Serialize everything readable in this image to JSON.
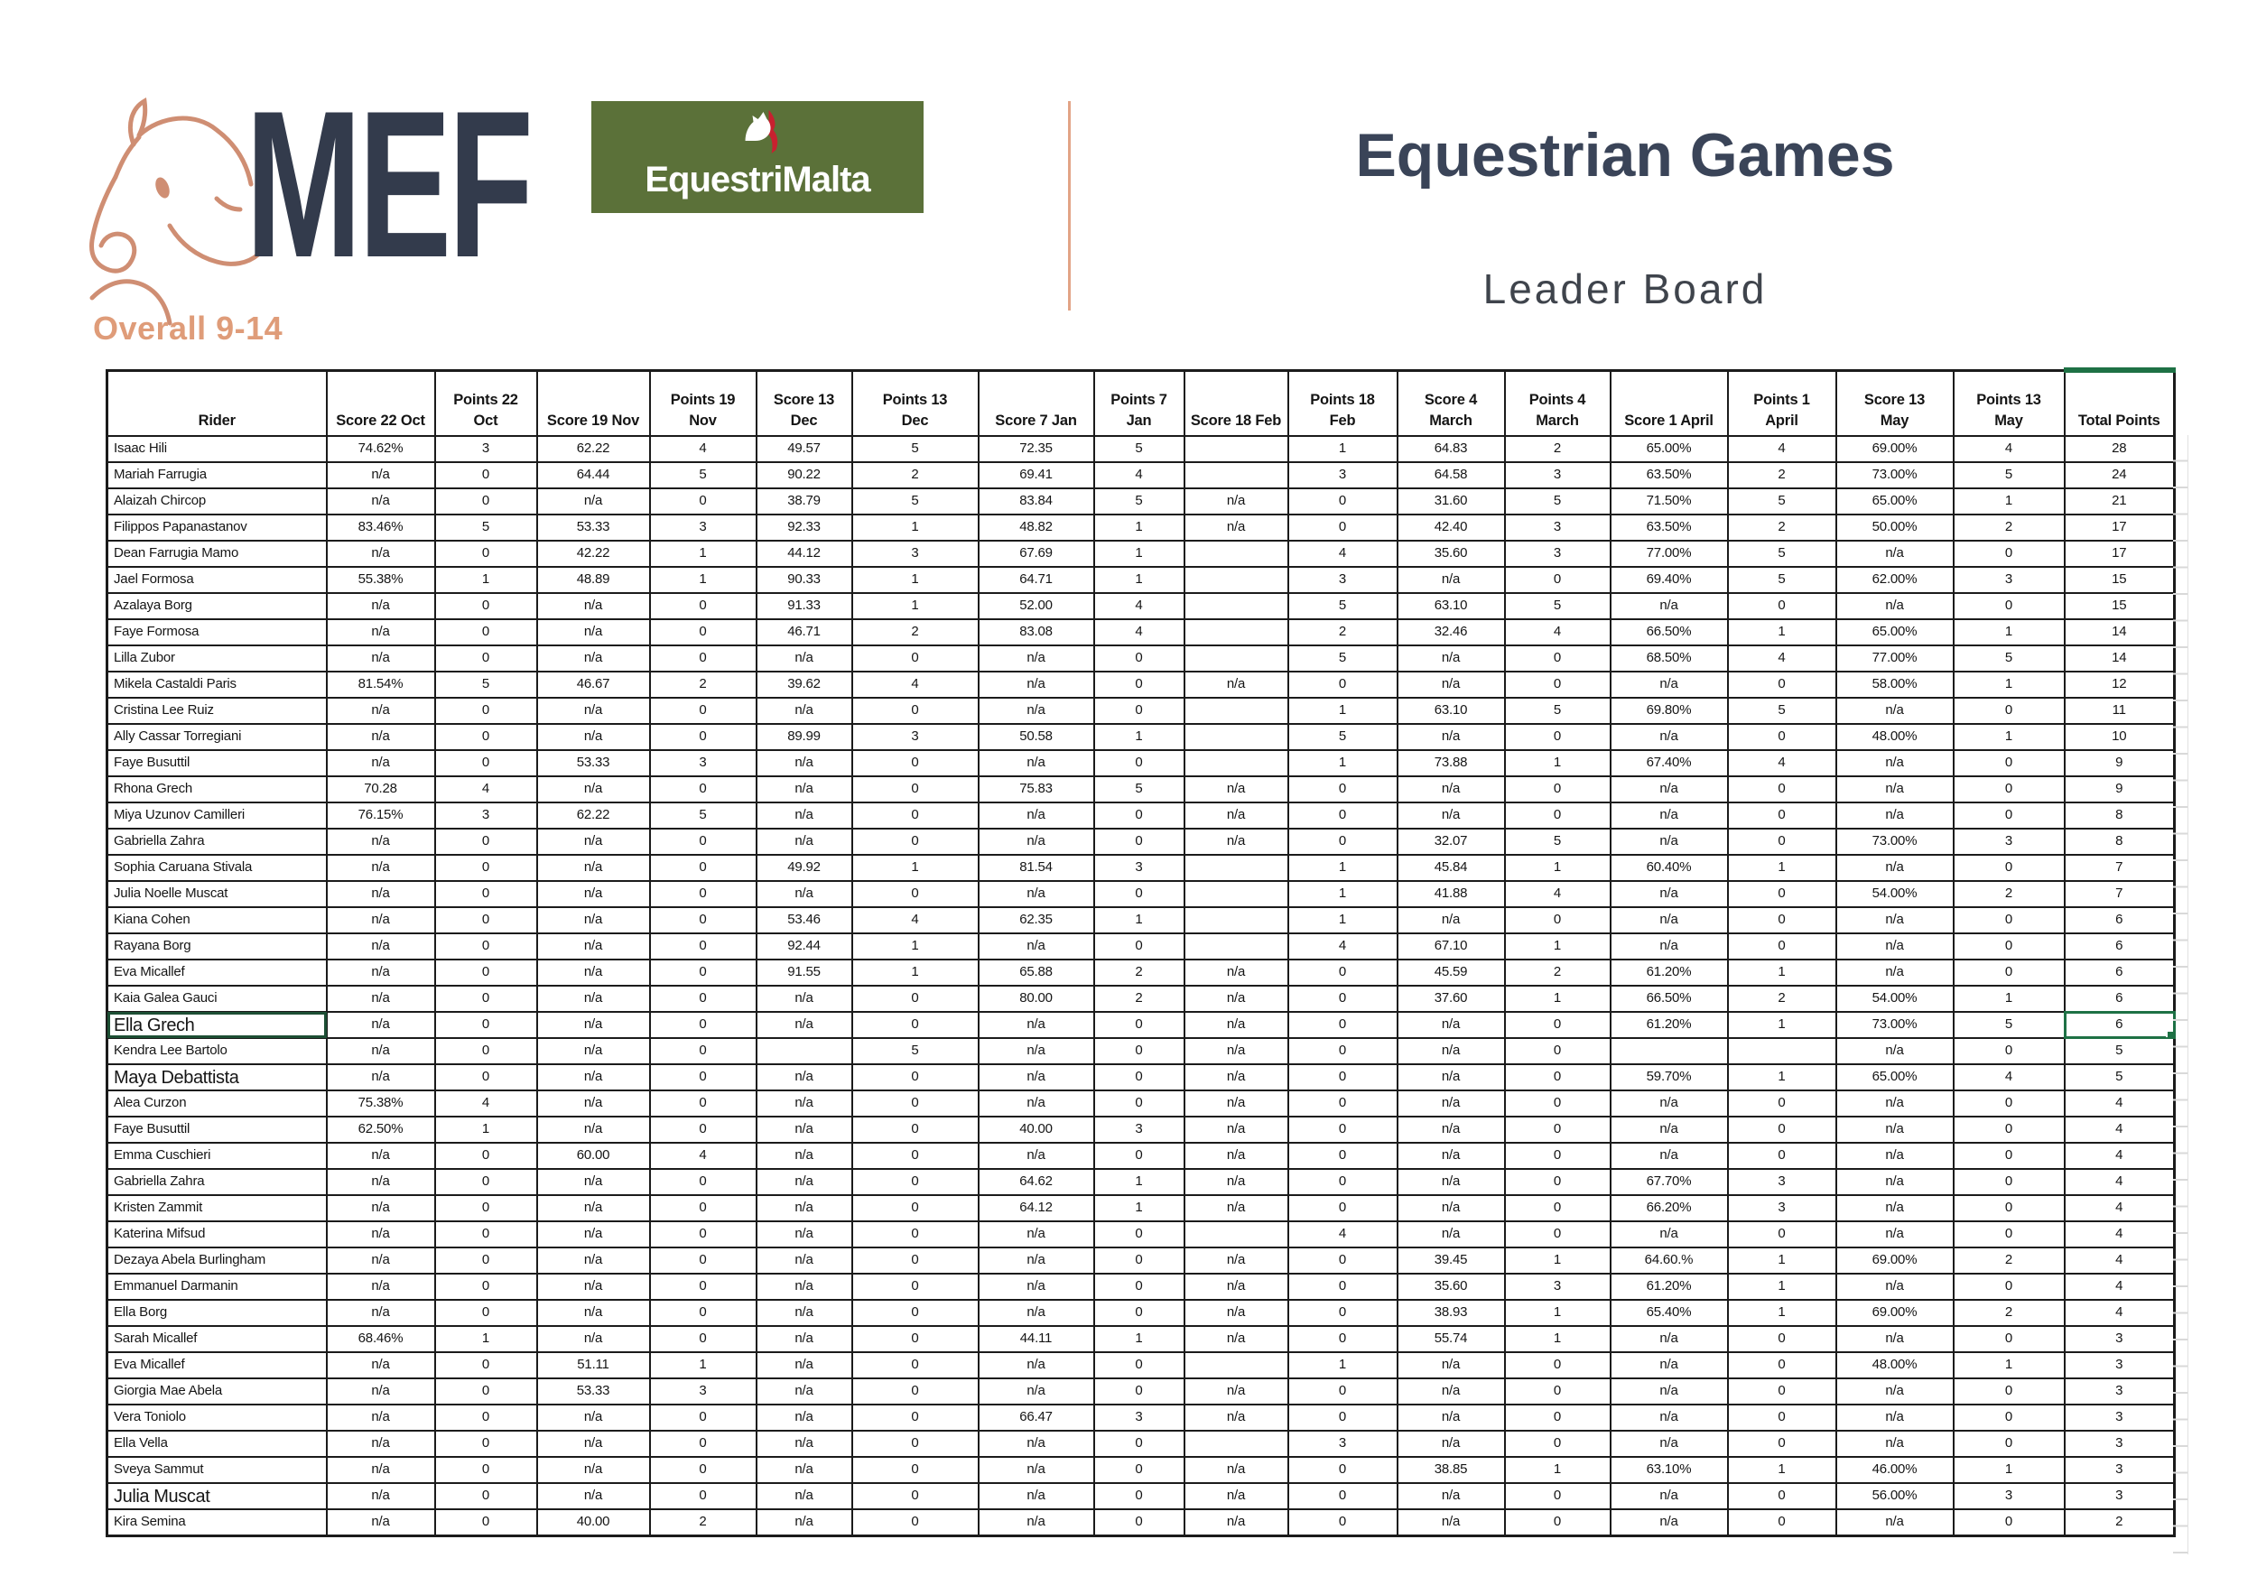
{
  "branding": {
    "mef_text": "MEF",
    "equestrimalta_label": "EquestriMalta",
    "overall_label": "Overall 9-14",
    "colors": {
      "accent_salmon": "#df9c79",
      "logo_green": "#5b7139",
      "navy": "#333b4c",
      "excel_green": "#1e7145"
    }
  },
  "header": {
    "title": "Equestrian Games",
    "subtitle": "Leader Board"
  },
  "table": {
    "columns": [
      "Rider",
      "Score 22 Oct",
      "Points 22\nOct",
      "Score 19 Nov",
      "Points 19\nNov",
      "Score 13 Dec",
      "Points 13\nDec",
      "Score 7 Jan",
      "Points 7 Jan",
      "Score 18 Feb",
      "Points 18\nFeb",
      "Score 4\nMarch",
      "Points 4\nMarch",
      "Score 1 April",
      "Points 1\nApril",
      "Score 13\nMay",
      "Points 13\nMay",
      "Total Points"
    ],
    "rows": [
      {
        "name": "Isaac Hili",
        "values": [
          "74.62%",
          "3",
          "62.22",
          "4",
          "49.57",
          "5",
          "72.35",
          "5",
          "",
          "1",
          "64.83",
          "2",
          "65.00%",
          "4",
          "69.00%",
          "4",
          "28"
        ]
      },
      {
        "name": "Mariah Farrugia",
        "values": [
          "n/a",
          "0",
          "64.44",
          "5",
          "90.22",
          "2",
          "69.41",
          "4",
          "",
          "3",
          "64.58",
          "3",
          "63.50%",
          "2",
          "73.00%",
          "5",
          "24"
        ]
      },
      {
        "name": "Alaizah Chircop",
        "values": [
          "n/a",
          "0",
          "n/a",
          "0",
          "38.79",
          "5",
          "83.84",
          "5",
          "n/a",
          "0",
          "31.60",
          "5",
          "71.50%",
          "5",
          "65.00%",
          "1",
          "21"
        ]
      },
      {
        "name": "Filippos Papanastanov",
        "values": [
          "83.46%",
          "5",
          "53.33",
          "3",
          "92.33",
          "1",
          "48.82",
          "1",
          "n/a",
          "0",
          "42.40",
          "3",
          "63.50%",
          "2",
          "50.00%",
          "2",
          "17"
        ]
      },
      {
        "name": "Dean Farrugia Mamo",
        "values": [
          "n/a",
          "0",
          "42.22",
          "1",
          "44.12",
          "3",
          "67.69",
          "1",
          "",
          "4",
          "35.60",
          "3",
          "77.00%",
          "5",
          "n/a",
          "0",
          "17"
        ]
      },
      {
        "name": "Jael Formosa",
        "values": [
          "55.38%",
          "1",
          "48.89",
          "1",
          "90.33",
          "1",
          "64.71",
          "1",
          "",
          "3",
          "n/a",
          "0",
          "69.40%",
          "5",
          "62.00%",
          "3",
          "15"
        ]
      },
      {
        "name": "Azalaya Borg",
        "values": [
          "n/a",
          "0",
          "n/a",
          "0",
          "91.33",
          "1",
          "52.00",
          "4",
          "",
          "5",
          "63.10",
          "5",
          "n/a",
          "0",
          "n/a",
          "0",
          "15"
        ]
      },
      {
        "name": "Faye Formosa",
        "values": [
          "n/a",
          "0",
          "n/a",
          "0",
          "46.71",
          "2",
          "83.08",
          "4",
          "",
          "2",
          "32.46",
          "4",
          "66.50%",
          "1",
          "65.00%",
          "1",
          "14"
        ]
      },
      {
        "name": "Lilla Zubor",
        "values": [
          "n/a",
          "0",
          "n/a",
          "0",
          "n/a",
          "0",
          "n/a",
          "0",
          "",
          "5",
          "n/a",
          "0",
          "68.50%",
          "4",
          "77.00%",
          "5",
          "14"
        ]
      },
      {
        "name": "Mikela Castaldi Paris",
        "values": [
          "81.54%",
          "5",
          "46.67",
          "2",
          "39.62",
          "4",
          "n/a",
          "0",
          "n/a",
          "0",
          "n/a",
          "0",
          "n/a",
          "0",
          "58.00%",
          "1",
          "12"
        ]
      },
      {
        "name": "Cristina Lee Ruiz",
        "values": [
          "n/a",
          "0",
          "n/a",
          "0",
          "n/a",
          "0",
          "n/a",
          "0",
          "",
          "1",
          "63.10",
          "5",
          "69.80%",
          "5",
          "n/a",
          "0",
          "11"
        ]
      },
      {
        "name": "Ally Cassar Torregiani",
        "values": [
          "n/a",
          "0",
          "n/a",
          "0",
          "89.99",
          "3",
          "50.58",
          "1",
          "",
          "5",
          "n/a",
          "0",
          "n/a",
          "0",
          "48.00%",
          "1",
          "10"
        ]
      },
      {
        "name": "Faye Busuttil",
        "values": [
          "n/a",
          "0",
          "53.33",
          "3",
          "n/a",
          "0",
          "n/a",
          "0",
          "",
          "1",
          "73.88",
          "1",
          "67.40%",
          "4",
          "n/a",
          "0",
          "9"
        ]
      },
      {
        "name": "Rhona Grech",
        "values": [
          "70.28",
          "4",
          "n/a",
          "0",
          "n/a",
          "0",
          "75.83",
          "5",
          "n/a",
          "0",
          "n/a",
          "0",
          "n/a",
          "0",
          "n/a",
          "0",
          "9"
        ]
      },
      {
        "name": "Miya Uzunov Camilleri",
        "values": [
          "76.15%",
          "3",
          "62.22",
          "5",
          "n/a",
          "0",
          "n/a",
          "0",
          "n/a",
          "0",
          "n/a",
          "0",
          "n/a",
          "0",
          "n/a",
          "0",
          "8"
        ]
      },
      {
        "name": "Gabriella Zahra",
        "values": [
          "n/a",
          "0",
          "n/a",
          "0",
          "n/a",
          "0",
          "n/a",
          "0",
          "n/a",
          "0",
          "32.07",
          "5",
          "n/a",
          "0",
          "73.00%",
          "3",
          "8"
        ]
      },
      {
        "name": "Sophia Caruana Stivala",
        "values": [
          "n/a",
          "0",
          "n/a",
          "0",
          "49.92",
          "1",
          "81.54",
          "3",
          "",
          "1",
          "45.84",
          "1",
          "60.40%",
          "1",
          "n/a",
          "0",
          "7"
        ]
      },
      {
        "name": "Julia Noelle Muscat",
        "values": [
          "n/a",
          "0",
          "n/a",
          "0",
          "n/a",
          "0",
          "n/a",
          "0",
          "",
          "1",
          "41.88",
          "4",
          "n/a",
          "0",
          "54.00%",
          "2",
          "7"
        ]
      },
      {
        "name": "Kiana Cohen",
        "values": [
          "n/a",
          "0",
          "n/a",
          "0",
          "53.46",
          "4",
          "62.35",
          "1",
          "",
          "1",
          "n/a",
          "0",
          "n/a",
          "0",
          "n/a",
          "0",
          "6"
        ]
      },
      {
        "name": "Rayana Borg",
        "values": [
          "n/a",
          "0",
          "n/a",
          "0",
          "92.44",
          "1",
          "n/a",
          "0",
          "",
          "4",
          "67.10",
          "1",
          "n/a",
          "0",
          "n/a",
          "0",
          "6"
        ]
      },
      {
        "name": "Eva Micallef",
        "values": [
          "n/a",
          "0",
          "n/a",
          "0",
          "91.55",
          "1",
          "65.88",
          "2",
          "n/a",
          "0",
          "45.59",
          "2",
          "61.20%",
          "1",
          "n/a",
          "0",
          "6"
        ]
      },
      {
        "name": "Kaia Galea Gauci",
        "values": [
          "n/a",
          "0",
          "n/a",
          "0",
          "n/a",
          "0",
          "80.00",
          "2",
          "n/a",
          "0",
          "37.60",
          "1",
          "66.50%",
          "2",
          "54.00%",
          "1",
          "6"
        ]
      },
      {
        "name": "Ella Grech",
        "big": true,
        "selected": true,
        "values": [
          "n/a",
          "0",
          "n/a",
          "0",
          "n/a",
          "0",
          "n/a",
          "0",
          "n/a",
          "0",
          "n/a",
          "0",
          "61.20%",
          "1",
          "73.00%",
          "5",
          "6"
        ]
      },
      {
        "name": "Kendra Lee Bartolo",
        "values": [
          "n/a",
          "0",
          "n/a",
          "0",
          "",
          "5",
          "n/a",
          "0",
          "n/a",
          "0",
          "n/a",
          "0",
          "",
          "",
          "n/a",
          "0",
          "5"
        ]
      },
      {
        "name": "Maya Debattista",
        "big": true,
        "values": [
          "n/a",
          "0",
          "n/a",
          "0",
          "n/a",
          "0",
          "n/a",
          "0",
          "n/a",
          "0",
          "n/a",
          "0",
          "59.70%",
          "1",
          "65.00%",
          "4",
          "5"
        ]
      },
      {
        "name": "Alea Curzon",
        "values": [
          "75.38%",
          "4",
          "n/a",
          "0",
          "n/a",
          "0",
          "n/a",
          "0",
          "n/a",
          "0",
          "n/a",
          "0",
          "n/a",
          "0",
          "n/a",
          "0",
          "4"
        ]
      },
      {
        "name": "Faye Busuttil",
        "values": [
          "62.50%",
          "1",
          "n/a",
          "0",
          "n/a",
          "0",
          "40.00",
          "3",
          "n/a",
          "0",
          "n/a",
          "0",
          "n/a",
          "0",
          "n/a",
          "0",
          "4"
        ]
      },
      {
        "name": "Emma Cuschieri",
        "values": [
          "n/a",
          "0",
          "60.00",
          "4",
          "n/a",
          "0",
          "n/a",
          "0",
          "n/a",
          "0",
          "n/a",
          "0",
          "n/a",
          "0",
          "n/a",
          "0",
          "4"
        ]
      },
      {
        "name": "Gabriella Zahra",
        "values": [
          "n/a",
          "0",
          "n/a",
          "0",
          "n/a",
          "0",
          "64.62",
          "1",
          "n/a",
          "0",
          "n/a",
          "0",
          "67.70%",
          "3",
          "n/a",
          "0",
          "4"
        ]
      },
      {
        "name": "Kristen Zammit",
        "values": [
          "n/a",
          "0",
          "n/a",
          "0",
          "n/a",
          "0",
          "64.12",
          "1",
          "n/a",
          "0",
          "n/a",
          "0",
          "66.20%",
          "3",
          "n/a",
          "0",
          "4"
        ]
      },
      {
        "name": "Katerina Mifsud",
        "values": [
          "n/a",
          "0",
          "n/a",
          "0",
          "n/a",
          "0",
          "n/a",
          "0",
          "",
          "4",
          "n/a",
          "0",
          "n/a",
          "0",
          "n/a",
          "0",
          "4"
        ]
      },
      {
        "name": "Dezaya Abela Burlingham",
        "values": [
          "n/a",
          "0",
          "n/a",
          "0",
          "n/a",
          "0",
          "n/a",
          "0",
          "n/a",
          "0",
          "39.45",
          "1",
          "64.60.%",
          "1",
          "69.00%",
          "2",
          "4"
        ]
      },
      {
        "name": "Emmanuel Darmanin",
        "values": [
          "n/a",
          "0",
          "n/a",
          "0",
          "n/a",
          "0",
          "n/a",
          "0",
          "n/a",
          "0",
          "35.60",
          "3",
          "61.20%",
          "1",
          "n/a",
          "0",
          "4"
        ]
      },
      {
        "name": "Ella Borg",
        "values": [
          "n/a",
          "0",
          "n/a",
          "0",
          "n/a",
          "0",
          "n/a",
          "0",
          "n/a",
          "0",
          "38.93",
          "1",
          "65.40%",
          "1",
          "69.00%",
          "2",
          "4"
        ]
      },
      {
        "name": "Sarah Micallef",
        "values": [
          "68.46%",
          "1",
          "n/a",
          "0",
          "n/a",
          "0",
          "44.11",
          "1",
          "n/a",
          "0",
          "55.74",
          "1",
          "n/a",
          "0",
          "n/a",
          "0",
          "3"
        ]
      },
      {
        "name": "Eva Micallef",
        "values": [
          "n/a",
          "0",
          "51.11",
          "1",
          "n/a",
          "0",
          "n/a",
          "0",
          "",
          "1",
          "n/a",
          "0",
          "n/a",
          "0",
          "48.00%",
          "1",
          "3"
        ]
      },
      {
        "name": "Giorgia Mae Abela",
        "values": [
          "n/a",
          "0",
          "53.33",
          "3",
          "n/a",
          "0",
          "n/a",
          "0",
          "n/a",
          "0",
          "n/a",
          "0",
          "n/a",
          "0",
          "n/a",
          "0",
          "3"
        ]
      },
      {
        "name": "Vera Toniolo",
        "values": [
          "n/a",
          "0",
          "n/a",
          "0",
          "n/a",
          "0",
          "66.47",
          "3",
          "n/a",
          "0",
          "n/a",
          "0",
          "n/a",
          "0",
          "n/a",
          "0",
          "3"
        ]
      },
      {
        "name": "Ella Vella",
        "values": [
          "n/a",
          "0",
          "n/a",
          "0",
          "n/a",
          "0",
          "n/a",
          "0",
          "",
          "3",
          "n/a",
          "0",
          "n/a",
          "0",
          "n/a",
          "0",
          "3"
        ]
      },
      {
        "name": "Sveya Sammut",
        "values": [
          "n/a",
          "0",
          "n/a",
          "0",
          "n/a",
          "0",
          "n/a",
          "0",
          "n/a",
          "0",
          "38.85",
          "1",
          "63.10%",
          "1",
          "46.00%",
          "1",
          "3"
        ]
      },
      {
        "name": "Julia Muscat",
        "big": true,
        "values": [
          "n/a",
          "0",
          "n/a",
          "0",
          "n/a",
          "0",
          "n/a",
          "0",
          "n/a",
          "0",
          "n/a",
          "0",
          "n/a",
          "0",
          "56.00%",
          "3",
          "3"
        ]
      },
      {
        "name": "Kira Semina",
        "values": [
          "n/a",
          "0",
          "40.00",
          "2",
          "n/a",
          "0",
          "n/a",
          "0",
          "n/a",
          "0",
          "n/a",
          "0",
          "n/a",
          "0",
          "n/a",
          "0",
          "2"
        ]
      }
    ]
  }
}
